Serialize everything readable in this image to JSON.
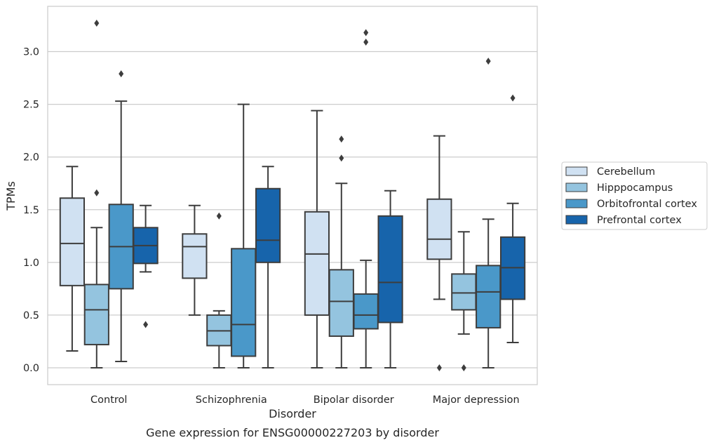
{
  "chart_data": {
    "type": "box",
    "title": "",
    "caption": "Gene expression for ENSG00000227203 by disorder",
    "xlabel": "Disorder",
    "ylabel": "TPMs",
    "ylim": [
      -0.16,
      3.43
    ],
    "yticks": [
      0.0,
      0.5,
      1.0,
      1.5,
      2.0,
      2.5,
      3.0
    ],
    "ytick_labels": [
      "0.0",
      "0.5",
      "1.0",
      "1.5",
      "2.0",
      "2.5",
      "3.0"
    ],
    "grid": "horizontal",
    "legend_position": "right",
    "categories": [
      "Control",
      "Schizophrenia",
      "Bipolar disorder",
      "Major depression"
    ],
    "series": [
      {
        "name": "Cerebellum",
        "color": "#d0e1f2",
        "boxes": [
          {
            "whislo": 0.16,
            "q1": 0.78,
            "med": 1.18,
            "q3": 1.61,
            "whishi": 1.91,
            "fliers": []
          },
          {
            "whislo": 0.5,
            "q1": 0.85,
            "med": 1.15,
            "q3": 1.27,
            "whishi": 1.54,
            "fliers": []
          },
          {
            "whislo": 0.0,
            "q1": 0.5,
            "med": 1.08,
            "q3": 1.48,
            "whishi": 2.44,
            "fliers": []
          },
          {
            "whislo": 0.65,
            "q1": 1.03,
            "med": 1.22,
            "q3": 1.6,
            "whishi": 2.2,
            "fliers": [
              0.0
            ]
          }
        ]
      },
      {
        "name": "Hipppocampus",
        "color": "#94c4df",
        "boxes": [
          {
            "whislo": 0.0,
            "q1": 0.22,
            "med": 0.55,
            "q3": 0.79,
            "whishi": 1.33,
            "fliers": [
              1.66,
              3.27
            ]
          },
          {
            "whislo": 0.0,
            "q1": 0.21,
            "med": 0.35,
            "q3": 0.5,
            "whishi": 0.54,
            "fliers": [
              1.44
            ]
          },
          {
            "whislo": 0.0,
            "q1": 0.3,
            "med": 0.63,
            "q3": 0.93,
            "whishi": 1.75,
            "fliers": [
              1.99,
              2.17
            ]
          },
          {
            "whislo": 0.32,
            "q1": 0.55,
            "med": 0.71,
            "q3": 0.89,
            "whishi": 1.29,
            "fliers": [
              0.0
            ]
          }
        ]
      },
      {
        "name": "Orbitofrontal cortex",
        "color": "#4a98c9",
        "boxes": [
          {
            "whislo": 0.06,
            "q1": 0.75,
            "med": 1.15,
            "q3": 1.55,
            "whishi": 2.53,
            "fliers": [
              2.79
            ]
          },
          {
            "whislo": 0.0,
            "q1": 0.11,
            "med": 0.41,
            "q3": 1.13,
            "whishi": 2.5,
            "fliers": []
          },
          {
            "whislo": 0.0,
            "q1": 0.37,
            "med": 0.5,
            "q3": 0.7,
            "whishi": 1.02,
            "fliers": [
              3.09,
              3.18
            ]
          },
          {
            "whislo": 0.0,
            "q1": 0.38,
            "med": 0.72,
            "q3": 0.97,
            "whishi": 1.41,
            "fliers": [
              2.91
            ]
          }
        ]
      },
      {
        "name": "Prefrontal cortex",
        "color": "#1764ab",
        "boxes": [
          {
            "whislo": 0.91,
            "q1": 0.99,
            "med": 1.16,
            "q3": 1.33,
            "whishi": 1.54,
            "fliers": [
              0.41
            ]
          },
          {
            "whislo": 0.0,
            "q1": 1.0,
            "med": 1.21,
            "q3": 1.7,
            "whishi": 1.91,
            "fliers": []
          },
          {
            "whislo": 0.0,
            "q1": 0.43,
            "med": 0.81,
            "q3": 1.44,
            "whishi": 1.68,
            "fliers": []
          },
          {
            "whislo": 0.24,
            "q1": 0.65,
            "med": 0.95,
            "q3": 1.24,
            "whishi": 1.56,
            "fliers": [
              2.56
            ]
          }
        ]
      }
    ]
  }
}
